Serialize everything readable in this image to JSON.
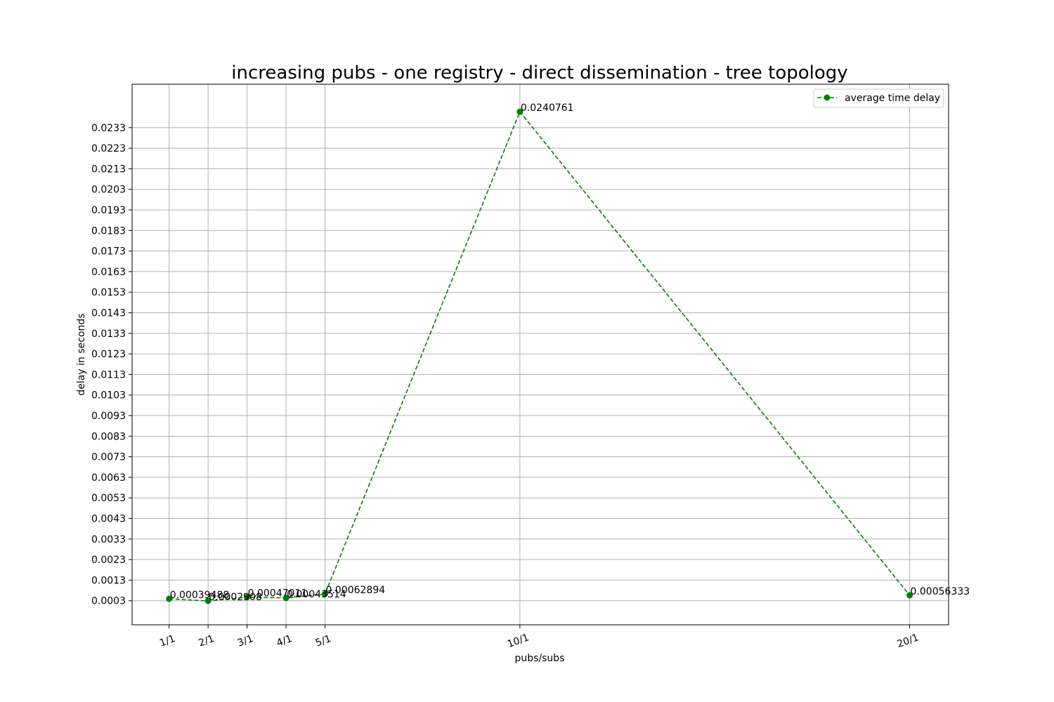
{
  "chart_data": {
    "type": "line",
    "title": "increasing pubs - one registry - direct dissemination - tree topology",
    "xlabel": "pubs/subs",
    "ylabel": "delay in seconds",
    "categories": [
      "1/1",
      "2/1",
      "3/1",
      "4/1",
      "5/1",
      "10/1",
      "20/1"
    ],
    "x": [
      1,
      2,
      3,
      4,
      5,
      10,
      20
    ],
    "series": [
      {
        "name": "average time delay",
        "color": "#008000",
        "line_style": "dashed",
        "marker": "circle",
        "values": [
          0.00039488,
          0.0002908,
          0.00047011,
          0.00043514,
          0.00062894,
          0.0240761,
          0.00056333
        ],
        "labels": [
          "0.00039488",
          "0.0002908",
          "0.00047011",
          "0.00043514",
          "0.00062894",
          "0.0240761",
          "0.00056333"
        ]
      }
    ],
    "yticks": [
      0.0003,
      0.0013,
      0.0023,
      0.0033,
      0.0043,
      0.0053,
      0.0063,
      0.0073,
      0.0083,
      0.0093,
      0.0103,
      0.0113,
      0.0123,
      0.0133,
      0.0143,
      0.0153,
      0.0163,
      0.0173,
      0.0183,
      0.0193,
      0.0203,
      0.0213,
      0.0223,
      0.0233
    ],
    "ytick_labels": [
      "0.0003",
      "0.0013",
      "0.0023",
      "0.0033",
      "0.0043",
      "0.0053",
      "0.0063",
      "0.0073",
      "0.0083",
      "0.0093",
      "0.0103",
      "0.0113",
      "0.0123",
      "0.0133",
      "0.0143",
      "0.0153",
      "0.0163",
      "0.0173",
      "0.0183",
      "0.0193",
      "0.0203",
      "0.0213",
      "0.0223",
      "0.0233"
    ],
    "xlim": [
      0.05,
      21.0
    ],
    "ylim": [
      -0.00087,
      0.02541
    ],
    "grid": true,
    "legend_position": "top-right",
    "xtick_rotation_deg": 20
  }
}
